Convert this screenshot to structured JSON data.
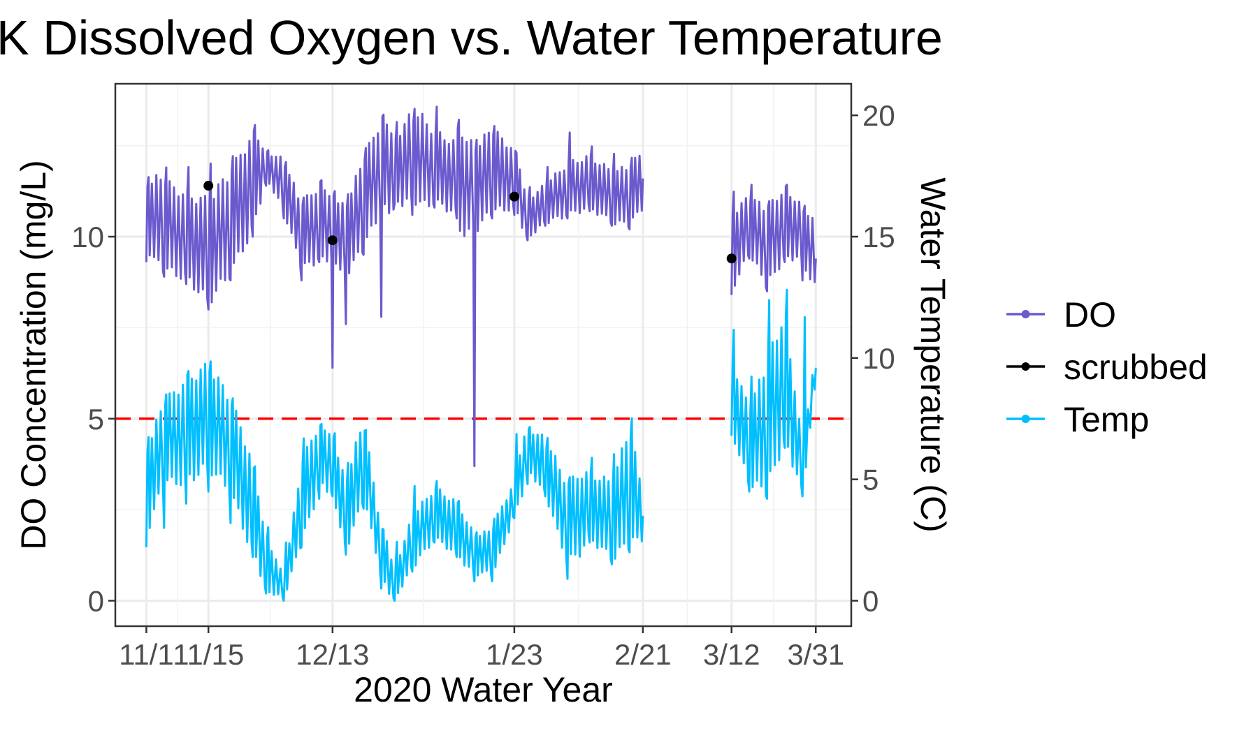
{
  "chart_data": {
    "type": "line",
    "title": "K Dissolved Oxygen vs. Water Temperature",
    "xlabel": "2020 Water Year",
    "ylabel": "DO Concentration (mg/L)",
    "y2label": "Water Temperature (C)",
    "x_tick_labels": [
      "11/1",
      "11/15",
      "12/13",
      "1/23",
      "2/21",
      "3/12",
      "3/31"
    ],
    "x_tick_dates": [
      "2019-11-01",
      "2019-11-15",
      "2019-12-13",
      "2020-01-23",
      "2020-02-21",
      "2020-03-12",
      "2020-03-31"
    ],
    "xlim": [
      "2019-10-25",
      "2020-04-08"
    ],
    "y_ticks": [
      0,
      5,
      10
    ],
    "ylim": [
      -0.7,
      14.2
    ],
    "y2_ticks": [
      0,
      5,
      10,
      15,
      20
    ],
    "y2lim": [
      -1.05,
      21.3
    ],
    "threshold": {
      "value": 5,
      "color": "#ff0000",
      "style": "dashed"
    },
    "legend": {
      "position": "right",
      "entries": [
        "DO",
        "scrubbed",
        "Temp"
      ]
    },
    "grid": true,
    "colors": {
      "DO": "#6a5acd",
      "scrubbed": "#000000",
      "Temp": "#00bfff"
    },
    "series": [
      {
        "name": "DO",
        "axis": "left",
        "x": [
          "2019-11-01",
          "2019-11-05",
          "2019-11-10",
          "2019-11-15",
          "2019-11-20",
          "2019-11-25",
          "2019-11-28",
          "2019-12-02",
          "2019-12-06",
          "2019-12-10",
          "2019-12-13",
          "2019-12-16",
          "2019-12-20",
          "2019-12-24",
          "2019-12-27",
          "2019-12-31",
          "2020-01-05",
          "2020-01-10",
          "2020-01-14",
          "2020-01-18",
          "2020-01-23",
          "2020-01-26",
          "2020-01-30",
          "2020-02-04",
          "2020-02-09",
          "2020-02-14",
          "2020-02-18",
          "2020-02-21",
          null,
          "2020-03-12",
          "2020-03-16",
          "2020-03-20",
          "2020-03-24",
          "2020-03-28",
          "2020-03-31"
        ],
        "values": [
          10.6,
          10.3,
          10.0,
          9.6,
          10.4,
          11.5,
          12.0,
          11.4,
          10.0,
          10.4,
          10.3,
          9.9,
          10.9,
          12.0,
          11.8,
          12.2,
          11.9,
          11.6,
          11.3,
          11.8,
          11.6,
          10.5,
          10.9,
          11.3,
          11.5,
          11.1,
          11.1,
          11.6,
          null,
          9.6,
          10.3,
          9.7,
          10.4,
          10.1,
          9.4
        ],
        "lows": [
          9.3,
          8.9,
          8.7,
          8.0,
          8.8,
          10.0,
          11.4,
          10.5,
          8.8,
          9.3,
          6.4,
          7.6,
          9.5,
          7.8,
          10.9,
          10.6,
          10.8,
          10.5,
          3.7,
          10.5,
          10.6,
          9.9,
          10.3,
          10.5,
          10.7,
          10.3,
          10.2,
          10.7,
          null,
          8.4,
          9.4,
          8.5,
          9.3,
          8.8,
          8.5
        ],
        "highs": [
          11.6,
          11.9,
          11.9,
          12.0,
          12.1,
          13.2,
          12.4,
          12.2,
          11.0,
          11.6,
          11.3,
          11.0,
          12.3,
          13.4,
          13.1,
          13.5,
          13.6,
          13.3,
          12.6,
          13.1,
          12.5,
          11.3,
          11.8,
          12.9,
          12.5,
          12.3,
          12.1,
          12.5,
          null,
          11.2,
          11.5,
          10.9,
          11.5,
          10.9,
          10.6
        ]
      },
      {
        "name": "scrubbed",
        "axis": "left",
        "x": [
          "2019-11-15",
          "2019-12-13",
          "2020-01-23",
          "2020-03-12"
        ],
        "values": [
          11.4,
          9.9,
          11.1,
          9.4
        ]
      },
      {
        "name": "Temp",
        "axis": "right",
        "x": [
          "2019-11-01",
          "2019-11-05",
          "2019-11-10",
          "2019-11-15",
          "2019-11-20",
          "2019-11-25",
          "2019-11-28",
          "2019-12-02",
          "2019-12-06",
          "2019-12-10",
          "2019-12-13",
          "2019-12-16",
          "2019-12-20",
          "2019-12-24",
          "2019-12-27",
          "2019-12-31",
          "2020-01-05",
          "2020-01-10",
          "2020-01-14",
          "2020-01-18",
          "2020-01-23",
          "2020-01-26",
          "2020-01-30",
          "2020-02-04",
          "2020-02-09",
          "2020-02-14",
          "2020-02-18",
          "2020-02-21",
          null,
          "2020-03-12",
          "2020-03-16",
          "2020-03-20",
          "2020-03-24",
          "2020-03-28",
          "2020-03-31"
        ],
        "values": [
          4.5,
          6.5,
          7.0,
          7.6,
          6.4,
          3.8,
          1.6,
          0.5,
          4.0,
          6.0,
          5.7,
          3.5,
          5.8,
          2.0,
          0.7,
          2.4,
          3.6,
          3.0,
          1.9,
          2.0,
          4.2,
          6.3,
          5.5,
          3.2,
          3.9,
          3.3,
          4.7,
          3.5,
          null,
          8.5,
          6.3,
          7.2,
          9.3,
          5.4,
          9.6
        ],
        "lows": [
          2.2,
          3.0,
          4.0,
          4.5,
          3.2,
          1.8,
          0.3,
          0.0,
          2.2,
          4.2,
          4.3,
          1.9,
          3.8,
          0.5,
          0.0,
          1.2,
          2.4,
          1.8,
          0.8,
          0.8,
          3.4,
          4.8,
          4.3,
          0.9,
          2.4,
          1.5,
          2.0,
          2.4,
          null,
          6.8,
          4.5,
          4.2,
          6.3,
          4.3,
          8.9
        ],
        "highs": [
          6.5,
          8.4,
          9.4,
          10.0,
          8.6,
          6.0,
          3.2,
          1.8,
          6.6,
          7.3,
          7.2,
          5.4,
          7.6,
          3.1,
          2.1,
          4.7,
          5.0,
          4.3,
          2.8,
          3.0,
          6.8,
          7.2,
          6.9,
          5.0,
          5.9,
          5.8,
          7.7,
          6.6,
          null,
          11.5,
          8.8,
          12.3,
          13.0,
          11.5,
          12.6
        ]
      }
    ]
  }
}
